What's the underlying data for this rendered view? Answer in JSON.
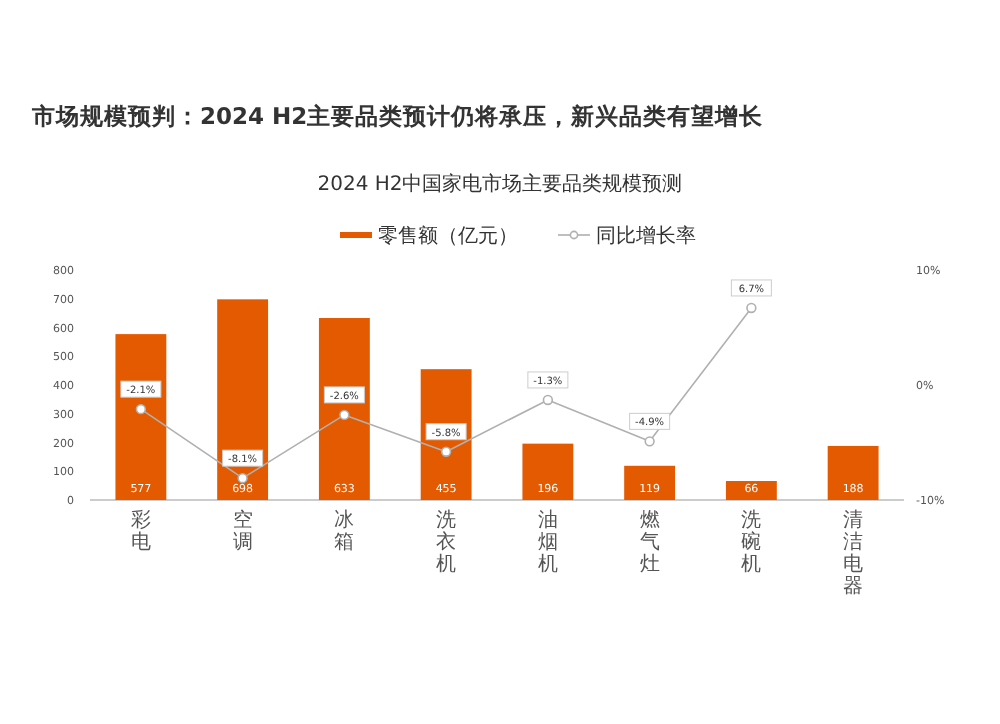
{
  "chart_data": {
    "type": "bar",
    "title": "市场规模预判：2024 H2主要品类预计仍将承压，新兴品类有望增长",
    "subtitle": "2024 H2中国家电市场主要品类规模预测",
    "categories": [
      "彩电",
      "空调",
      "冰箱",
      "洗衣机",
      "油烟机",
      "燃气灶",
      "洗碗机",
      "清洁电器"
    ],
    "series": [
      {
        "name": "零售额（亿元）",
        "color": "#e35a00",
        "values": [
          577,
          698,
          633,
          455,
          196,
          119,
          66,
          188
        ],
        "value_labels": [
          "577",
          "698",
          "633",
          "455",
          "196",
          "119",
          "66",
          "188"
        ]
      },
      {
        "name": "同比增长率",
        "type": "line",
        "axis": "y2",
        "color": "#b0b0b0",
        "marker": "circle",
        "values": [
          -2.1,
          -8.1,
          -2.6,
          -5.8,
          -1.3,
          -4.9,
          6.7,
          null
        ],
        "value_labels": [
          "-2.1%",
          "-8.1%",
          "-2.6%",
          "-5.8%",
          "-1.3%",
          "-4.9%",
          "6.7%",
          null
        ]
      }
    ],
    "ylim": [
      0,
      800
    ],
    "yticks": [
      0,
      100,
      200,
      300,
      400,
      500,
      600,
      700,
      800
    ],
    "y2lim": [
      -10,
      10
    ],
    "y2ticks": [
      {
        "value": -10,
        "label": "-10%"
      },
      {
        "value": 0,
        "label": "0%"
      },
      {
        "value": 10,
        "label": "10%"
      }
    ],
    "legend": "top",
    "grid": false
  }
}
